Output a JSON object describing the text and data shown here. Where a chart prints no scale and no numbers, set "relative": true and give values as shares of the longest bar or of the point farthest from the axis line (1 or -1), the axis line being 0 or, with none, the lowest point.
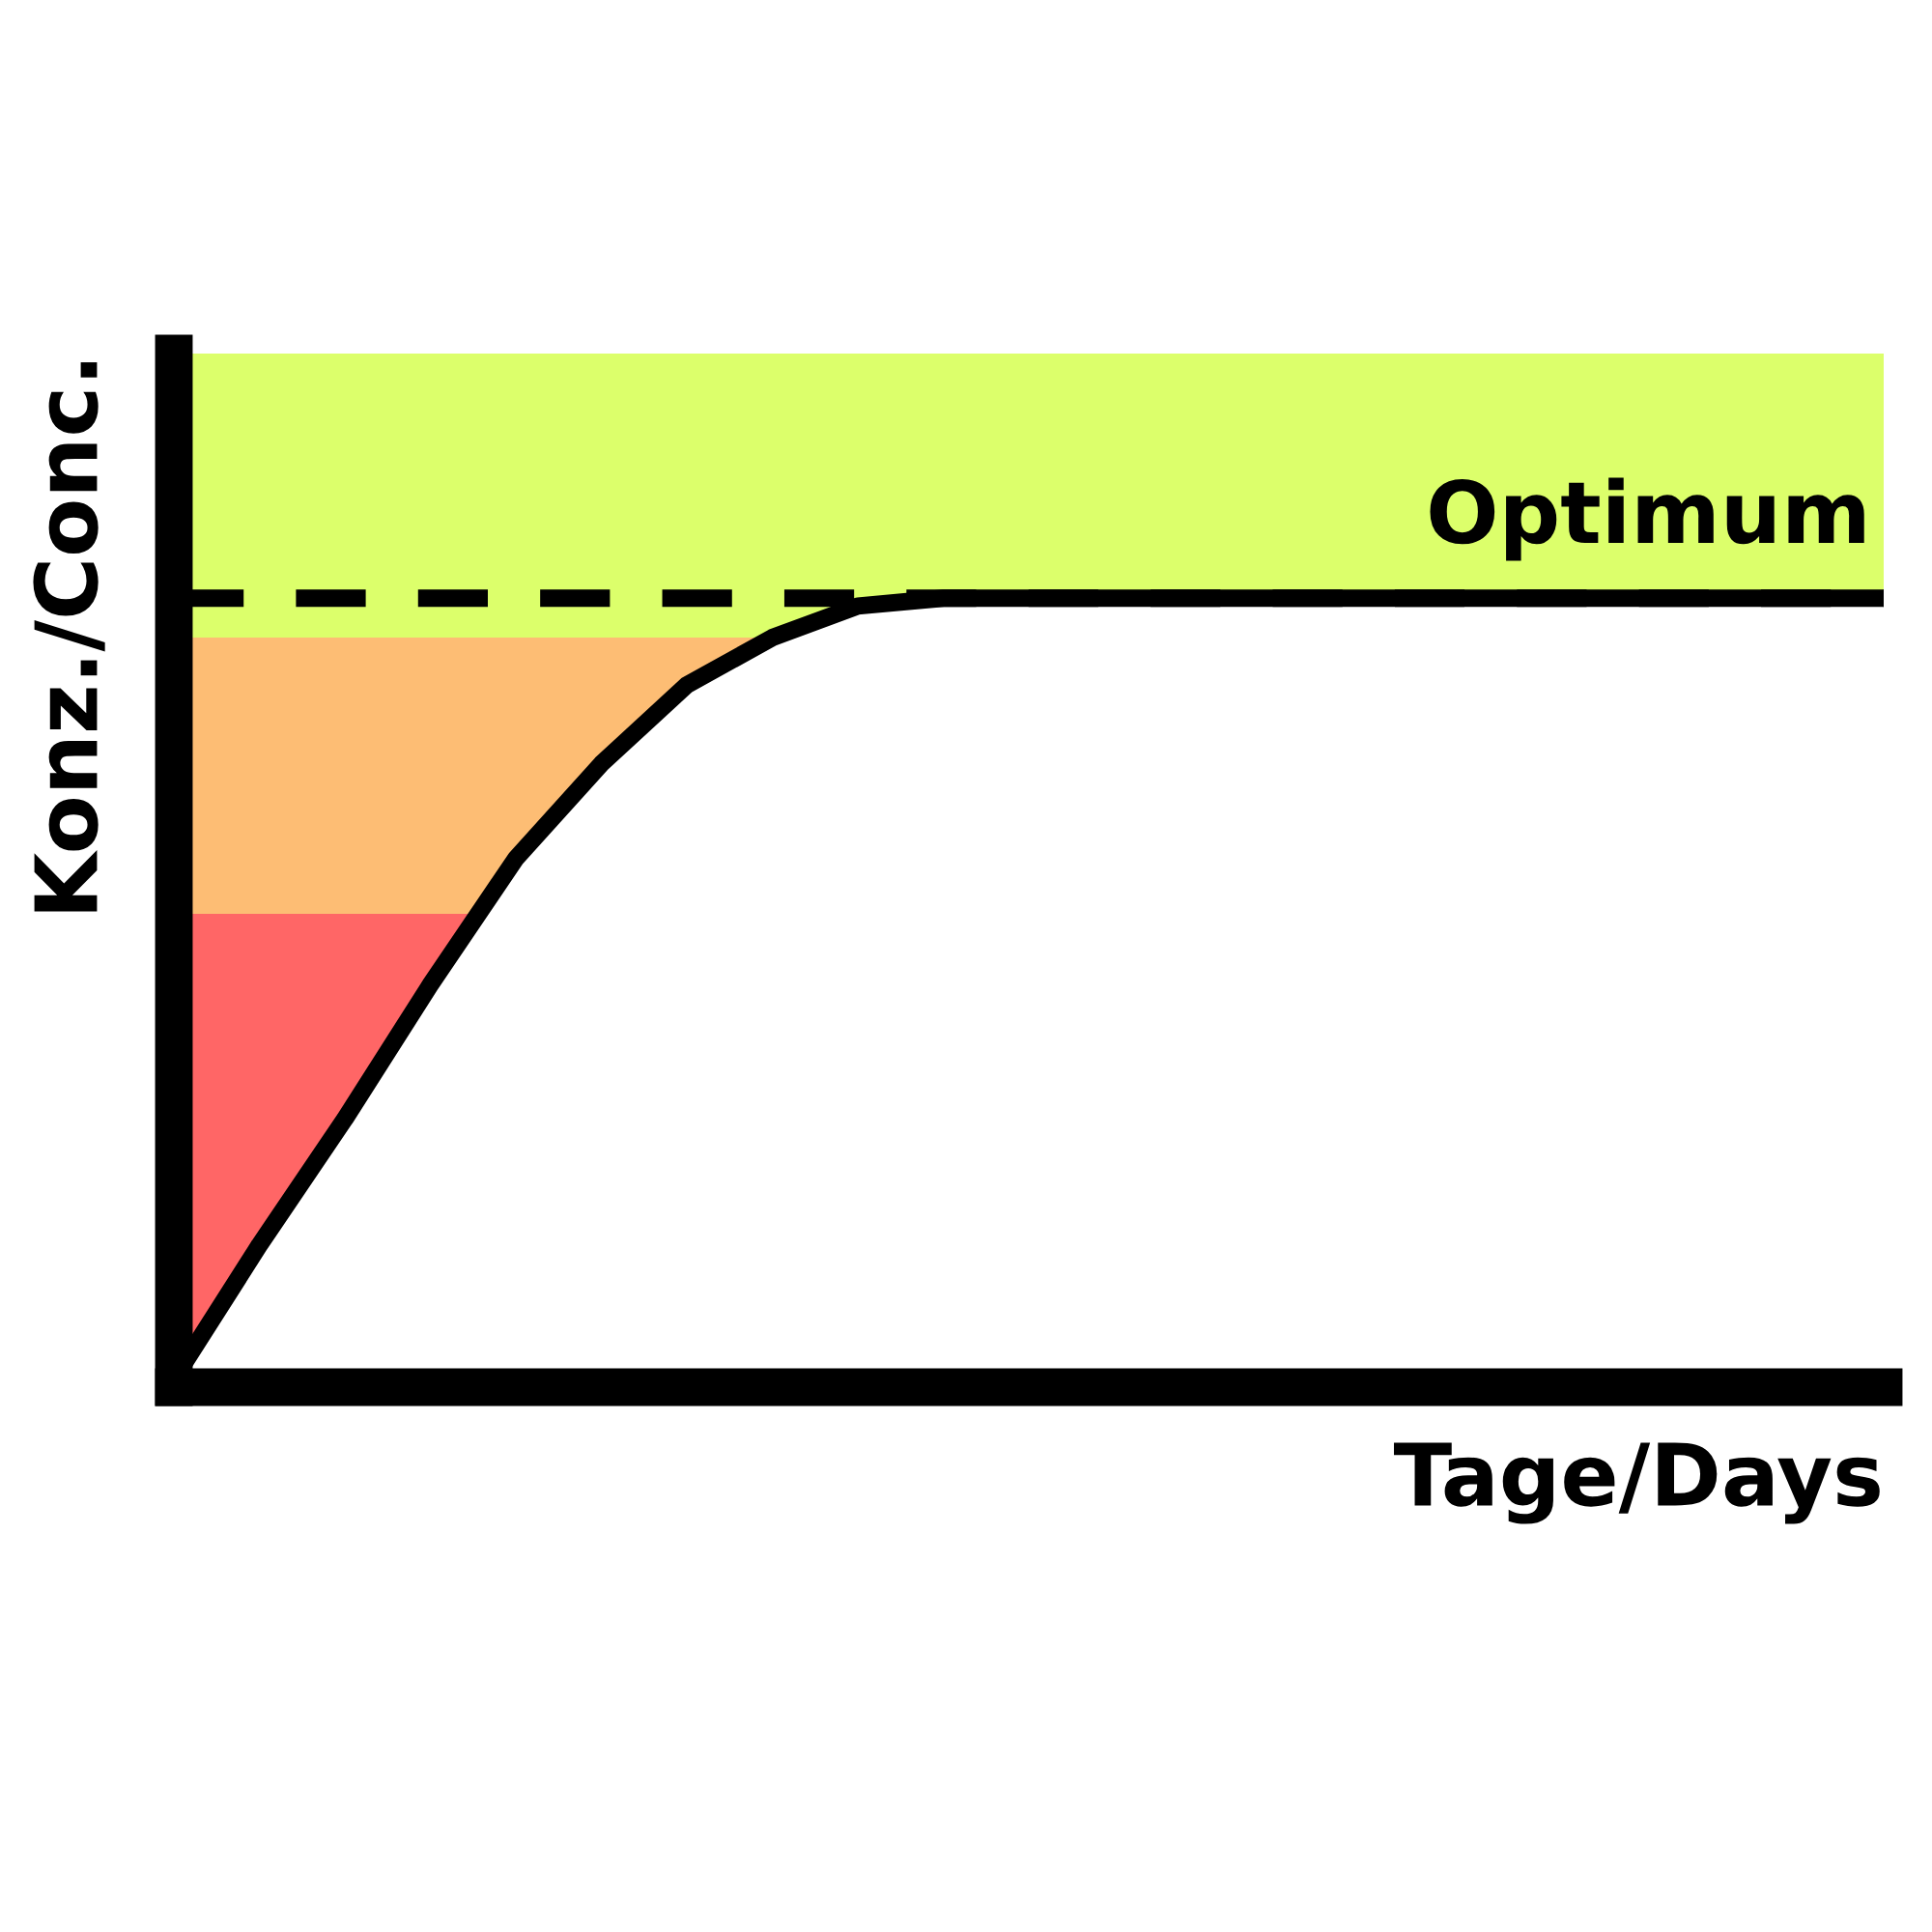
{
  "chart_data": {
    "type": "line",
    "relative": true,
    "xlabel": "Tage/Days",
    "ylabel": "Konz./Conc.",
    "categories": [
      null,
      null,
      null,
      null,
      null,
      null,
      null,
      null,
      null,
      null,
      null,
      null,
      null,
      null,
      null,
      null,
      null,
      null,
      null,
      null,
      null
    ],
    "series": [
      {
        "color": "#000000",
        "values": [
          0.01,
          0.18,
          0.34,
          0.51,
          0.67,
          0.79,
          0.89,
          0.95,
          0.99,
          1,
          1,
          1,
          1,
          1,
          1,
          1,
          1,
          1,
          1,
          1,
          1
        ]
      }
    ],
    "bands": [
      {
        "axis": "y",
        "from": 0,
        "to": 0.6,
        "color": "#ff6666"
      },
      {
        "axis": "y",
        "from": 0.6,
        "to": 0.95,
        "color": "#fdbd74"
      },
      {
        "axis": "y",
        "from": 0.95,
        "to": 1.31,
        "color": "#dcff6b",
        "label": "Optimum"
      }
    ],
    "ref_lines": [
      {
        "axis": "y",
        "value": 1,
        "color": "#000000",
        "line_style": "dashed"
      }
    ],
    "tick_labels": false
  }
}
